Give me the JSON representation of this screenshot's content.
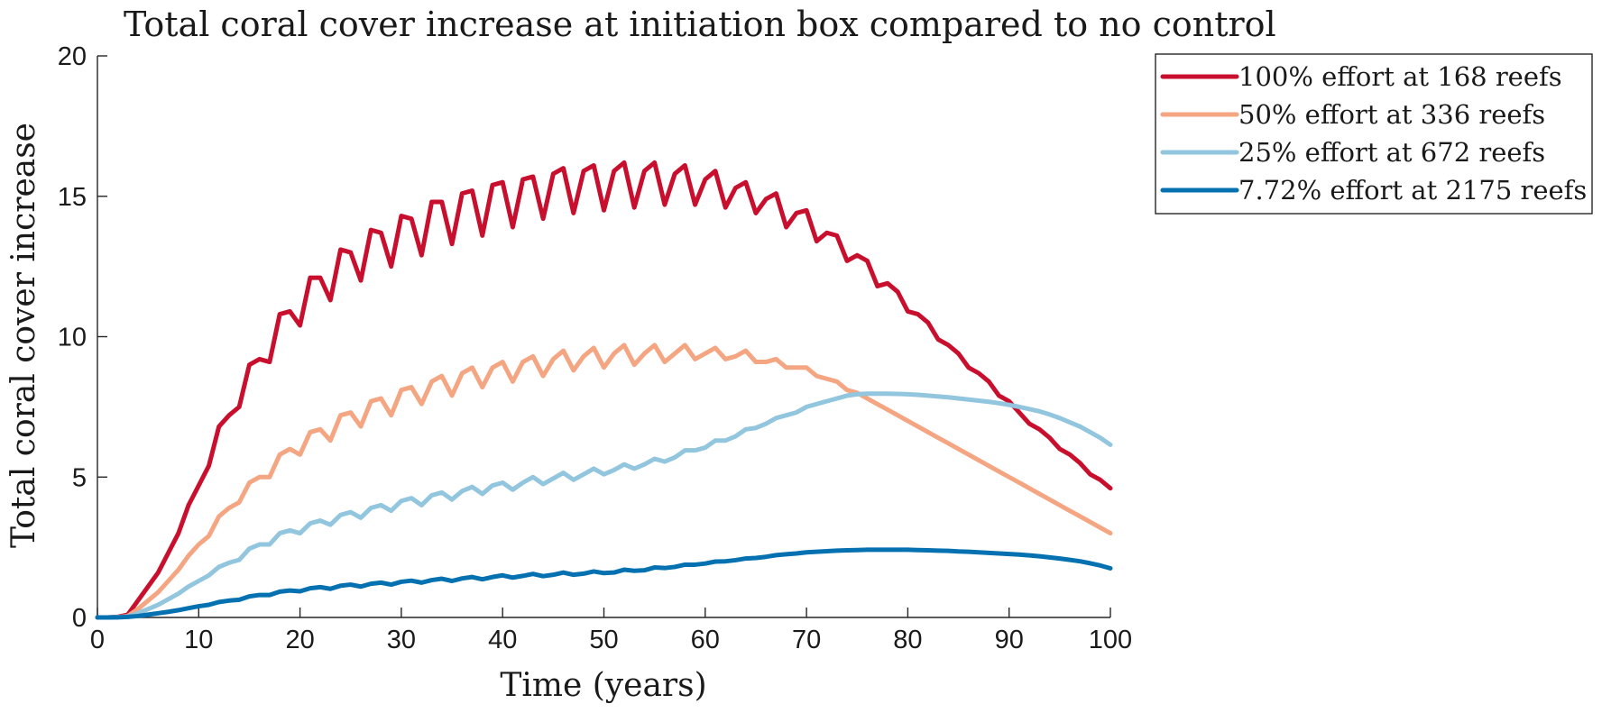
{
  "chart_data": {
    "type": "line",
    "title": "Total coral cover increase at initiation box compared to no control",
    "xlabel": "Time (years)",
    "ylabel": "Total coral cover increase",
    "xlim": [
      0,
      100
    ],
    "ylim": [
      0,
      20
    ],
    "xticks": [
      0,
      10,
      20,
      30,
      40,
      50,
      60,
      70,
      80,
      90,
      100
    ],
    "yticks": [
      0,
      5,
      10,
      15,
      20
    ],
    "grid": false,
    "legend_position": "outside-top-right",
    "series": [
      {
        "name": "100% effort at 168 reefs",
        "color": "#c8102e",
        "x": [
          0,
          1,
          2,
          3,
          4,
          5,
          6,
          7,
          8,
          9,
          10,
          11,
          12,
          13,
          14,
          15,
          16,
          17,
          18,
          19,
          20,
          21,
          22,
          23,
          24,
          25,
          26,
          27,
          28,
          29,
          30,
          31,
          32,
          33,
          34,
          35,
          36,
          37,
          38,
          39,
          40,
          41,
          42,
          43,
          44,
          45,
          46,
          47,
          48,
          49,
          50,
          51,
          52,
          53,
          54,
          55,
          56,
          57,
          58,
          59,
          60,
          61,
          62,
          63,
          64,
          65,
          66,
          67,
          68,
          69,
          70,
          71,
          72,
          73,
          74,
          75,
          76,
          77,
          78,
          79,
          80,
          81,
          82,
          83,
          84,
          85,
          86,
          87,
          88,
          89,
          90,
          91,
          92,
          93,
          94,
          95,
          96,
          97,
          98,
          99,
          100
        ],
        "y": [
          0,
          0,
          0.02,
          0.1,
          0.6,
          1.1,
          1.6,
          2.3,
          3.0,
          4.0,
          4.7,
          5.4,
          6.8,
          7.2,
          7.5,
          9.0,
          9.2,
          9.1,
          10.8,
          10.9,
          10.4,
          12.1,
          12.1,
          11.3,
          13.1,
          13.0,
          12.0,
          13.8,
          13.7,
          12.5,
          14.3,
          14.2,
          12.9,
          14.8,
          14.8,
          13.3,
          15.1,
          15.2,
          13.6,
          15.4,
          15.5,
          13.9,
          15.6,
          15.7,
          14.2,
          15.8,
          16.0,
          14.4,
          15.9,
          16.1,
          14.5,
          15.9,
          16.2,
          14.6,
          15.9,
          16.2,
          14.7,
          15.8,
          16.1,
          14.7,
          15.6,
          15.9,
          14.6,
          15.3,
          15.5,
          14.4,
          14.9,
          15.1,
          13.9,
          14.4,
          14.5,
          13.4,
          13.7,
          13.6,
          12.7,
          12.9,
          12.7,
          11.8,
          11.9,
          11.6,
          10.9,
          10.8,
          10.5,
          9.9,
          9.7,
          9.4,
          8.9,
          8.7,
          8.4,
          7.9,
          7.7,
          7.3,
          6.9,
          6.7,
          6.4,
          6.0,
          5.8,
          5.5,
          5.1,
          4.9,
          4.6
        ]
      },
      {
        "name": "50% effort at 336 reefs",
        "color": "#f4a582",
        "x": [
          0,
          1,
          2,
          3,
          4,
          5,
          6,
          7,
          8,
          9,
          10,
          11,
          12,
          13,
          14,
          15,
          16,
          17,
          18,
          19,
          20,
          21,
          22,
          23,
          24,
          25,
          26,
          27,
          28,
          29,
          30,
          31,
          32,
          33,
          34,
          35,
          36,
          37,
          38,
          39,
          40,
          41,
          42,
          43,
          44,
          45,
          46,
          47,
          48,
          49,
          50,
          51,
          52,
          53,
          54,
          55,
          56,
          57,
          58,
          59,
          60,
          61,
          62,
          63,
          64,
          65,
          66,
          67,
          68,
          69,
          70,
          71,
          72,
          73,
          74,
          75,
          76,
          77,
          78,
          79,
          80,
          81,
          82,
          83,
          84,
          85,
          86,
          87,
          88,
          89,
          90,
          91,
          92,
          93,
          94,
          95,
          96,
          97,
          98,
          99,
          100
        ],
        "y": [
          0,
          0,
          0.01,
          0.05,
          0.3,
          0.6,
          0.9,
          1.3,
          1.7,
          2.2,
          2.6,
          2.9,
          3.6,
          3.9,
          4.1,
          4.8,
          5.0,
          5.0,
          5.8,
          6.0,
          5.8,
          6.6,
          6.7,
          6.3,
          7.2,
          7.3,
          6.8,
          7.7,
          7.8,
          7.2,
          8.1,
          8.2,
          7.6,
          8.4,
          8.6,
          7.9,
          8.7,
          8.9,
          8.2,
          8.9,
          9.1,
          8.4,
          9.1,
          9.3,
          8.6,
          9.2,
          9.5,
          8.8,
          9.3,
          9.6,
          8.9,
          9.4,
          9.7,
          9.0,
          9.4,
          9.7,
          9.1,
          9.4,
          9.7,
          9.2,
          9.4,
          9.6,
          9.2,
          9.3,
          9.5,
          9.1,
          9.1,
          9.2,
          8.9,
          8.9,
          8.9,
          8.6,
          8.5,
          8.4,
          8.1,
          8.0,
          7.8,
          7.6,
          7.4,
          7.2,
          7.0,
          6.8,
          6.6,
          6.4,
          6.2,
          6.0,
          5.8,
          5.6,
          5.4,
          5.2,
          5.0,
          4.8,
          4.6,
          4.4,
          4.2,
          4.0,
          3.8,
          3.6,
          3.4,
          3.2,
          3.0
        ]
      },
      {
        "name": "25% effort at 672 reefs",
        "color": "#92c5de",
        "x": [
          0,
          1,
          2,
          3,
          4,
          5,
          6,
          7,
          8,
          9,
          10,
          11,
          12,
          13,
          14,
          15,
          16,
          17,
          18,
          19,
          20,
          21,
          22,
          23,
          24,
          25,
          26,
          27,
          28,
          29,
          30,
          31,
          32,
          33,
          34,
          35,
          36,
          37,
          38,
          39,
          40,
          41,
          42,
          43,
          44,
          45,
          46,
          47,
          48,
          49,
          50,
          51,
          52,
          53,
          54,
          55,
          56,
          57,
          58,
          59,
          60,
          61,
          62,
          63,
          64,
          65,
          66,
          67,
          68,
          69,
          70,
          71,
          72,
          73,
          74,
          75,
          76,
          77,
          78,
          79,
          80,
          81,
          82,
          83,
          84,
          85,
          86,
          87,
          88,
          89,
          90,
          91,
          92,
          93,
          94,
          95,
          96,
          97,
          98,
          99,
          100
        ],
        "y": [
          0,
          0,
          0.01,
          0.03,
          0.15,
          0.3,
          0.45,
          0.65,
          0.85,
          1.1,
          1.3,
          1.5,
          1.8,
          1.95,
          2.05,
          2.45,
          2.6,
          2.6,
          3.0,
          3.1,
          3.0,
          3.35,
          3.45,
          3.3,
          3.65,
          3.75,
          3.55,
          3.9,
          4.0,
          3.8,
          4.15,
          4.25,
          4.0,
          4.35,
          4.45,
          4.2,
          4.5,
          4.65,
          4.4,
          4.7,
          4.8,
          4.55,
          4.8,
          5.0,
          4.75,
          4.95,
          5.15,
          4.9,
          5.1,
          5.3,
          5.1,
          5.25,
          5.45,
          5.3,
          5.45,
          5.65,
          5.55,
          5.7,
          5.95,
          5.95,
          6.05,
          6.3,
          6.3,
          6.45,
          6.7,
          6.75,
          6.9,
          7.1,
          7.2,
          7.3,
          7.5,
          7.6,
          7.7,
          7.8,
          7.9,
          7.95,
          7.97,
          7.97,
          7.97,
          7.96,
          7.95,
          7.93,
          7.9,
          7.87,
          7.84,
          7.8,
          7.76,
          7.72,
          7.68,
          7.63,
          7.57,
          7.5,
          7.42,
          7.34,
          7.23,
          7.1,
          6.95,
          6.8,
          6.6,
          6.4,
          6.15
        ]
      },
      {
        "name": "7.72% effort at 2175 reefs",
        "color": "#0571b0",
        "x": [
          0,
          1,
          2,
          3,
          4,
          5,
          6,
          7,
          8,
          9,
          10,
          11,
          12,
          13,
          14,
          15,
          16,
          17,
          18,
          19,
          20,
          21,
          22,
          23,
          24,
          25,
          26,
          27,
          28,
          29,
          30,
          31,
          32,
          33,
          34,
          35,
          36,
          37,
          38,
          39,
          40,
          41,
          42,
          43,
          44,
          45,
          46,
          47,
          48,
          49,
          50,
          51,
          52,
          53,
          54,
          55,
          56,
          57,
          58,
          59,
          60,
          61,
          62,
          63,
          64,
          65,
          66,
          67,
          68,
          69,
          70,
          71,
          72,
          73,
          74,
          75,
          76,
          77,
          78,
          79,
          80,
          81,
          82,
          83,
          84,
          85,
          86,
          87,
          88,
          89,
          90,
          91,
          92,
          93,
          94,
          95,
          96,
          97,
          98,
          99,
          100
        ],
        "y": [
          0,
          0,
          0.005,
          0.02,
          0.05,
          0.1,
          0.15,
          0.2,
          0.26,
          0.33,
          0.4,
          0.45,
          0.55,
          0.6,
          0.63,
          0.75,
          0.8,
          0.8,
          0.92,
          0.96,
          0.93,
          1.04,
          1.08,
          1.02,
          1.13,
          1.17,
          1.1,
          1.2,
          1.24,
          1.17,
          1.27,
          1.31,
          1.24,
          1.33,
          1.38,
          1.3,
          1.39,
          1.44,
          1.36,
          1.44,
          1.5,
          1.42,
          1.48,
          1.55,
          1.47,
          1.52,
          1.6,
          1.52,
          1.56,
          1.64,
          1.58,
          1.6,
          1.7,
          1.66,
          1.68,
          1.78,
          1.76,
          1.8,
          1.88,
          1.88,
          1.92,
          1.99,
          2.0,
          2.04,
          2.1,
          2.12,
          2.16,
          2.22,
          2.25,
          2.28,
          2.32,
          2.34,
          2.36,
          2.38,
          2.39,
          2.4,
          2.41,
          2.41,
          2.41,
          2.41,
          2.41,
          2.4,
          2.39,
          2.38,
          2.37,
          2.35,
          2.34,
          2.32,
          2.3,
          2.28,
          2.26,
          2.24,
          2.21,
          2.18,
          2.14,
          2.1,
          2.05,
          2.0,
          1.93,
          1.85,
          1.75
        ]
      }
    ]
  }
}
